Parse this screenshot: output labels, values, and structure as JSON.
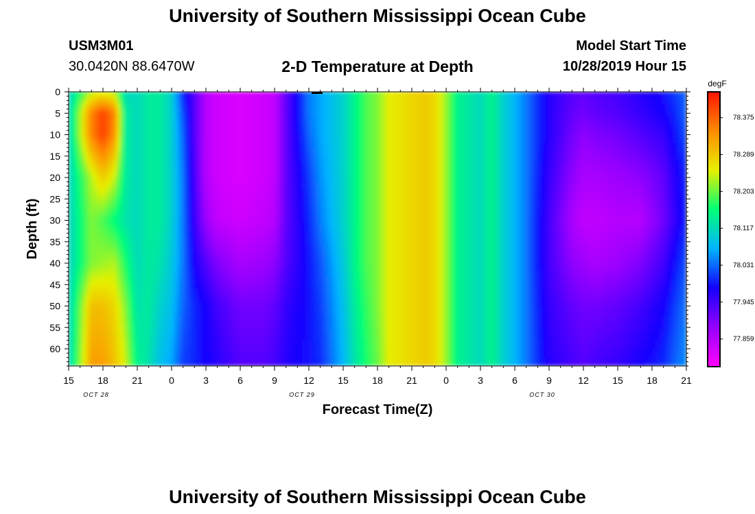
{
  "page": {
    "title": "University of Southern Mississippi Ocean Cube",
    "footer_title": "University of Southern Mississippi Ocean Cube",
    "station_id": "USM3M01",
    "location": "30.0420N 88.6470W",
    "plot_title": "2-D Temperature at Depth",
    "model_start_label": "Model Start Time",
    "model_start_value": "10/28/2019 Hour 15"
  },
  "chart_data": {
    "type": "heatmap",
    "title": "2-D Temperature at Depth",
    "xlabel": "Forecast Time(Z)",
    "ylabel": "Depth (ft)",
    "x_tick_labels": [
      "15",
      "18",
      "21",
      "0",
      "3",
      "6",
      "9",
      "12",
      "15",
      "18",
      "21",
      "0",
      "3",
      "6",
      "9",
      "12",
      "15",
      "18",
      "21"
    ],
    "date_labels": [
      {
        "label": "OCT 28",
        "tick_index": 1
      },
      {
        "label": "OCT 29",
        "tick_index": 7
      },
      {
        "label": "OCT 30",
        "tick_index": 14
      }
    ],
    "y_ticks": [
      0,
      5,
      10,
      15,
      20,
      25,
      30,
      35,
      40,
      45,
      50,
      55,
      60
    ],
    "ylim": [
      0,
      64
    ],
    "xlim_hours": [
      0,
      54
    ],
    "colorbar": {
      "unit": "degF",
      "labels": [
        "78.375",
        "78.289",
        "78.203",
        "78.117",
        "78.031",
        "77.945",
        "77.859"
      ],
      "min": 77.83,
      "max": 78.43,
      "colors": [
        "#ff00ff",
        "#9600ff",
        "#1400ff",
        "#00b4ff",
        "#00ff78",
        "#e6f000",
        "#ff8c00",
        "#ff1400"
      ]
    },
    "hours_from_start": [
      0,
      2,
      3,
      4,
      5,
      6,
      7,
      8,
      9,
      10,
      11,
      12,
      13,
      15,
      17,
      18,
      19,
      21,
      22,
      24,
      25,
      26,
      27,
      28,
      30,
      31,
      32,
      33,
      34,
      36,
      37,
      38,
      40,
      42,
      44,
      45,
      46,
      48,
      50,
      52,
      53,
      54
    ],
    "depths_ft": [
      0,
      5,
      10,
      20,
      30,
      40,
      50,
      64
    ],
    "values_degF": [
      [
        78.12,
        78.12,
        78.12,
        78.12,
        78.12,
        78.12,
        78.12,
        78.12
      ],
      [
        78.24,
        78.35,
        78.35,
        78.24,
        78.22,
        78.22,
        78.3,
        78.33
      ],
      [
        78.25,
        78.4,
        78.4,
        78.29,
        78.2,
        78.23,
        78.3,
        78.33
      ],
      [
        78.24,
        78.35,
        78.34,
        78.25,
        78.17,
        78.24,
        78.28,
        78.3
      ],
      [
        78.13,
        78.15,
        78.15,
        78.15,
        78.14,
        78.18,
        78.22,
        78.25
      ],
      [
        78.13,
        78.13,
        78.13,
        78.13,
        78.13,
        78.13,
        78.14,
        78.16
      ],
      [
        78.15,
        78.15,
        78.15,
        78.15,
        78.15,
        78.15,
        78.15,
        78.14
      ],
      [
        78.15,
        78.15,
        78.15,
        78.15,
        78.15,
        78.14,
        78.12,
        78.1
      ],
      [
        78.12,
        78.12,
        78.12,
        78.12,
        78.12,
        78.11,
        78.1,
        78.08
      ],
      [
        78.02,
        78.04,
        78.05,
        78.06,
        78.06,
        78.06,
        78.05,
        78.03
      ],
      [
        77.96,
        77.96,
        77.96,
        77.97,
        77.98,
        78.0,
        78.02,
        78.02
      ],
      [
        77.89,
        77.89,
        77.89,
        77.89,
        77.91,
        77.96,
        78.0,
        78.0
      ],
      [
        77.87,
        77.87,
        77.87,
        77.87,
        77.88,
        77.93,
        77.97,
        77.99
      ],
      [
        77.86,
        77.86,
        77.86,
        77.86,
        77.87,
        77.9,
        77.94,
        77.96
      ],
      [
        77.87,
        77.87,
        77.87,
        77.87,
        77.88,
        77.91,
        77.94,
        77.96
      ],
      [
        77.88,
        77.88,
        77.88,
        77.88,
        77.89,
        77.92,
        77.95,
        77.97
      ],
      [
        77.95,
        77.95,
        77.95,
        77.95,
        77.95,
        77.96,
        77.98,
        77.99
      ],
      [
        78.06,
        78.06,
        78.05,
        78.03,
        78.02,
        78.01,
        78.01,
        78.01
      ],
      [
        78.08,
        78.08,
        78.08,
        78.07,
        78.06,
        78.04,
        78.03,
        78.02
      ],
      [
        78.12,
        78.12,
        78.12,
        78.12,
        78.12,
        78.11,
        78.1,
        78.09
      ],
      [
        78.16,
        78.16,
        78.16,
        78.16,
        78.16,
        78.16,
        78.15,
        78.14
      ],
      [
        78.2,
        78.2,
        78.2,
        78.2,
        78.2,
        78.2,
        78.19,
        78.18
      ],
      [
        78.22,
        78.22,
        78.22,
        78.22,
        78.22,
        78.22,
        78.22,
        78.21
      ],
      [
        78.26,
        78.26,
        78.26,
        78.26,
        78.26,
        78.26,
        78.26,
        78.26
      ],
      [
        78.28,
        78.28,
        78.28,
        78.28,
        78.28,
        78.28,
        78.28,
        78.28
      ],
      [
        78.29,
        78.29,
        78.29,
        78.29,
        78.29,
        78.29,
        78.29,
        78.29
      ],
      [
        78.28,
        78.28,
        78.28,
        78.28,
        78.28,
        78.28,
        78.28,
        78.28
      ],
      [
        78.23,
        78.23,
        78.23,
        78.23,
        78.23,
        78.23,
        78.23,
        78.23
      ],
      [
        78.16,
        78.16,
        78.16,
        78.16,
        78.16,
        78.16,
        78.16,
        78.16
      ],
      [
        78.13,
        78.13,
        78.13,
        78.13,
        78.13,
        78.13,
        78.13,
        78.13
      ],
      [
        78.16,
        78.16,
        78.16,
        78.16,
        78.16,
        78.16,
        78.16,
        78.16
      ],
      [
        78.12,
        78.12,
        78.12,
        78.12,
        78.12,
        78.12,
        78.12,
        78.12
      ],
      [
        78.06,
        78.06,
        78.06,
        78.06,
        78.06,
        78.06,
        78.06,
        78.06
      ],
      [
        77.99,
        77.99,
        77.99,
        77.98,
        77.97,
        77.97,
        77.98,
        77.99
      ],
      [
        77.96,
        77.95,
        77.94,
        77.92,
        77.9,
        77.92,
        77.95,
        77.97
      ],
      [
        77.95,
        77.94,
        77.92,
        77.9,
        77.88,
        77.91,
        77.94,
        77.96
      ],
      [
        77.96,
        77.95,
        77.93,
        77.9,
        77.88,
        77.9,
        77.94,
        77.97
      ],
      [
        77.97,
        77.96,
        77.94,
        77.91,
        77.89,
        77.91,
        77.95,
        77.98
      ],
      [
        77.99,
        77.98,
        77.96,
        77.92,
        77.89,
        77.93,
        77.97,
        78.0
      ],
      [
        78.01,
        78.0,
        77.98,
        77.95,
        77.94,
        77.97,
        78.0,
        78.02
      ],
      [
        78.03,
        78.02,
        78.01,
        77.99,
        77.98,
        78.01,
        78.03,
        78.05
      ],
      [
        78.05,
        78.05,
        78.04,
        78.02,
        78.02,
        78.04,
        78.06,
        78.07
      ]
    ]
  }
}
